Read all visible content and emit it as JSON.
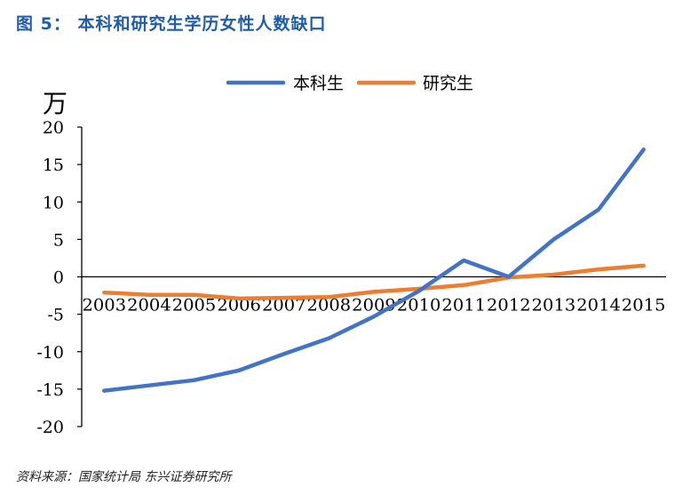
{
  "figure": {
    "title": "图  5：  本科和研究生学历女性人数缺口",
    "source": "资料来源：国家统计局 东兴证券研究所"
  },
  "chart_data": {
    "type": "line",
    "ylabel": "万",
    "x": [
      "2003",
      "2004",
      "2005",
      "2006",
      "2007",
      "2008",
      "2009",
      "2010",
      "2011",
      "2012",
      "2013",
      "2014",
      "2015"
    ],
    "ylim": [
      -20,
      20
    ],
    "yticks": [
      20,
      15,
      10,
      5,
      0,
      -5,
      -10,
      -15,
      -20
    ],
    "legend_position": "top",
    "grid": false,
    "series": [
      {
        "name": "本科生",
        "color": "#4472c4",
        "values": [
          -15.2,
          -14.5,
          -13.8,
          -12.5,
          -10.3,
          -8.2,
          -5.3,
          -1.9,
          2.2,
          0.0,
          5.0,
          9.0,
          17.0
        ]
      },
      {
        "name": "研究生",
        "color": "#ed7d31",
        "values": [
          -2.1,
          -2.4,
          -2.4,
          -2.9,
          -2.8,
          -2.7,
          -2.0,
          -1.6,
          -1.1,
          -0.1,
          0.3,
          1.0,
          1.5
        ]
      }
    ]
  }
}
